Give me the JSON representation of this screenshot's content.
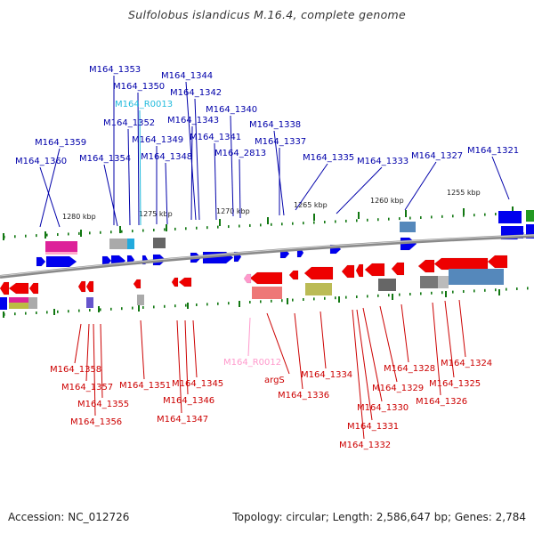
{
  "title": "Sulfolobus islandicus M.16.4, complete genome",
  "footer": {
    "accession": "Accession: NC_012726",
    "summary": "Topology: circular; Length: 2,586,647 bp; Genes: 2,784"
  },
  "scale_ticks": [
    "1280 kbp",
    "1275 kbp",
    "1270 kbp",
    "1265 kbp",
    "1260 kbp",
    "1255 kbp"
  ],
  "colors": {
    "forward_gene": "#0000ee",
    "reverse_gene": "#ee0000",
    "rna_forward": "#22bbdd",
    "rna_reverse": "#ff99cc",
    "backbone": "#888888",
    "tick": "#117711"
  },
  "top_labels": [
    {
      "text": "M164_1353",
      "kind": "gene"
    },
    {
      "text": "M164_1344",
      "kind": "gene"
    },
    {
      "text": "M164_1350",
      "kind": "gene"
    },
    {
      "text": "M164_1342",
      "kind": "gene"
    },
    {
      "text": "M164_R0013",
      "kind": "rna"
    },
    {
      "text": "M164_1340",
      "kind": "gene"
    },
    {
      "text": "M164_1352",
      "kind": "gene"
    },
    {
      "text": "M164_1343",
      "kind": "gene"
    },
    {
      "text": "M164_1338",
      "kind": "gene"
    },
    {
      "text": "M164_1349",
      "kind": "gene"
    },
    {
      "text": "M164_1341",
      "kind": "gene"
    },
    {
      "text": "M164_1337",
      "kind": "gene"
    },
    {
      "text": "M164_1359",
      "kind": "gene"
    },
    {
      "text": "M164_2813",
      "kind": "gene"
    },
    {
      "text": "M164_1321",
      "kind": "gene"
    },
    {
      "text": "M164_1348",
      "kind": "gene"
    },
    {
      "text": "M164_1327",
      "kind": "gene"
    },
    {
      "text": "M164_1360",
      "kind": "gene"
    },
    {
      "text": "M164_1354",
      "kind": "gene"
    },
    {
      "text": "M164_1335",
      "kind": "gene"
    },
    {
      "text": "M164_1333",
      "kind": "gene"
    }
  ],
  "bottom_labels": [
    {
      "text": "M164_R0012",
      "kind": "rna"
    },
    {
      "text": "M164_1324",
      "kind": "gene"
    },
    {
      "text": "M164_1358",
      "kind": "gene"
    },
    {
      "text": "M164_1328",
      "kind": "gene"
    },
    {
      "text": "M164_1345",
      "kind": "gene"
    },
    {
      "text": "M164_1334",
      "kind": "gene"
    },
    {
      "text": "argS",
      "kind": "gene"
    },
    {
      "text": "M164_1325",
      "kind": "gene"
    },
    {
      "text": "M164_1357",
      "kind": "gene"
    },
    {
      "text": "M164_1351",
      "kind": "gene"
    },
    {
      "text": "M164_1329",
      "kind": "gene"
    },
    {
      "text": "M164_1336",
      "kind": "gene"
    },
    {
      "text": "M164_1346",
      "kind": "gene"
    },
    {
      "text": "M164_1326",
      "kind": "gene"
    },
    {
      "text": "M164_1355",
      "kind": "gene"
    },
    {
      "text": "M164_1330",
      "kind": "gene"
    },
    {
      "text": "M164_1347",
      "kind": "gene"
    },
    {
      "text": "M164_1356",
      "kind": "gene"
    },
    {
      "text": "M164_1331",
      "kind": "gene"
    },
    {
      "text": "M164_1332",
      "kind": "gene"
    }
  ]
}
